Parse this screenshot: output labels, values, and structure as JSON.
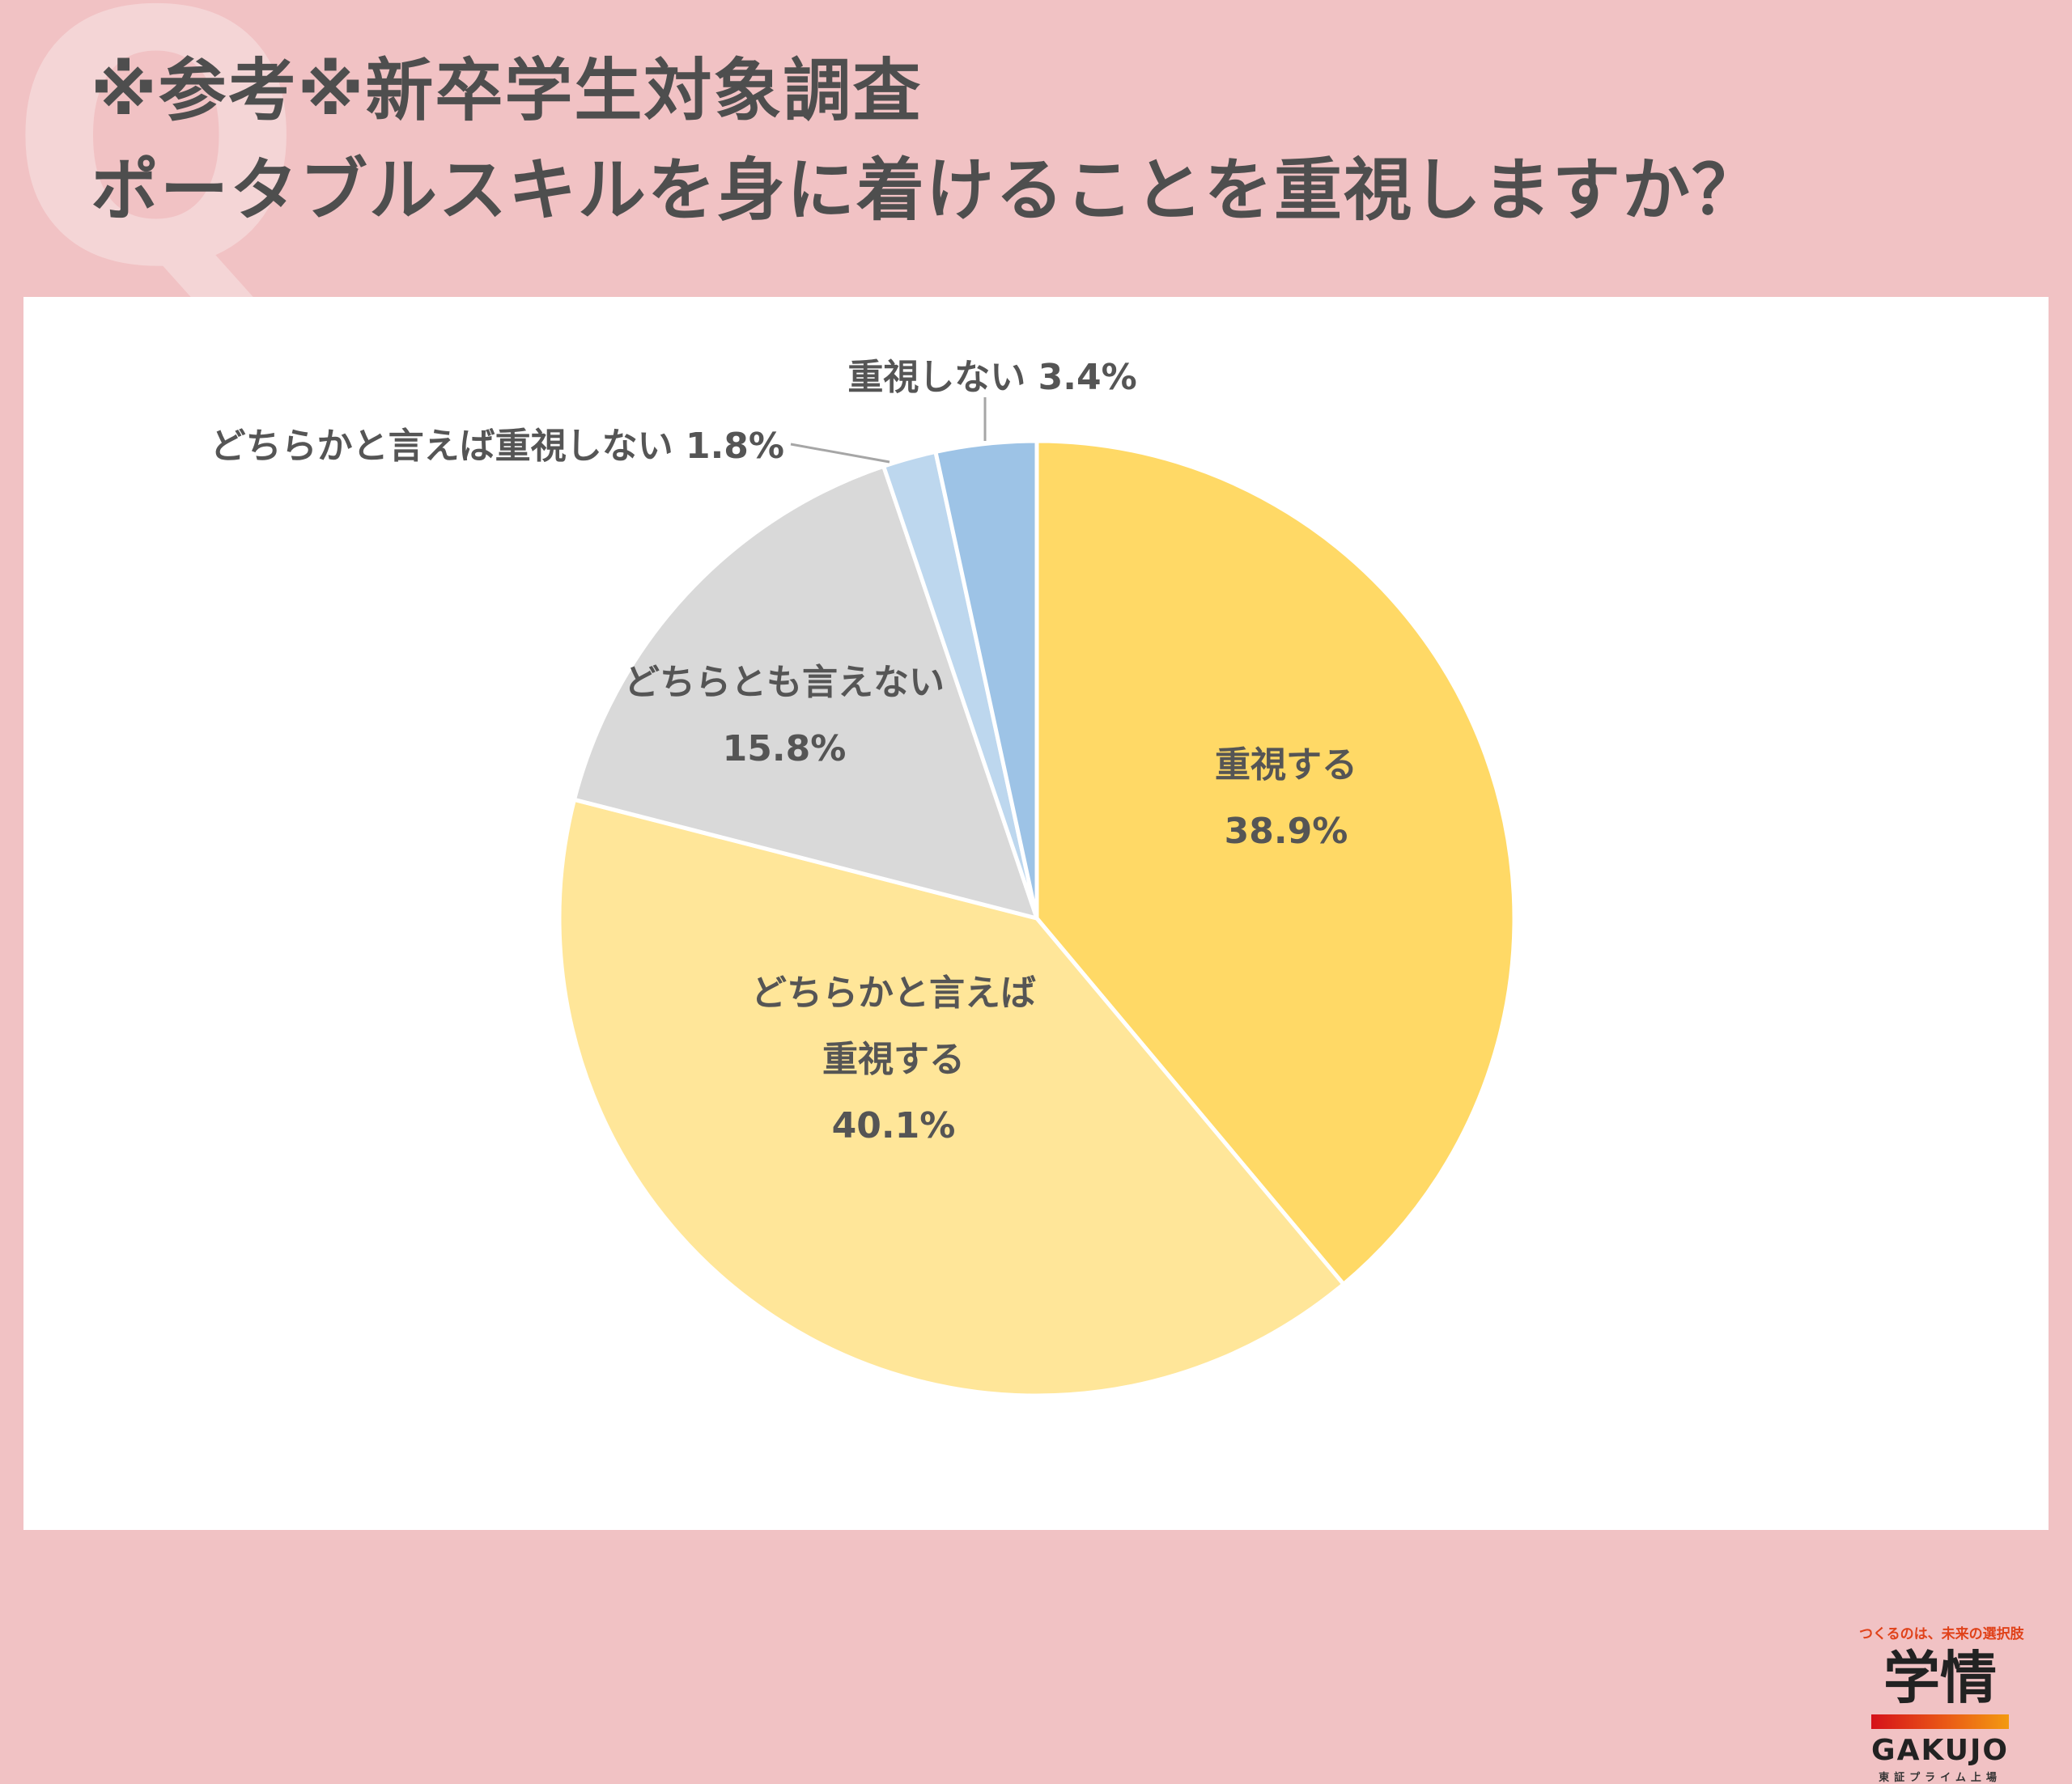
{
  "header": {
    "watermark": "Q",
    "title_line1": "※参考※新卒学生対象調査",
    "title_line2": "ポータブルスキルを身に着けることを重視しますか？"
  },
  "chart_data": {
    "type": "pie",
    "start": "12 o'clock, clockwise",
    "slices": [
      {
        "label_lines": [
          "重視する"
        ],
        "value": 38.9,
        "value_label": "38.9%",
        "color": "#ffd966",
        "label_position": "inside"
      },
      {
        "label_lines": [
          "どちらかと言えば",
          "重視する"
        ],
        "value": 40.1,
        "value_label": "40.1%",
        "color": "#ffe699",
        "label_position": "inside"
      },
      {
        "label_lines": [
          "どちらとも言えない"
        ],
        "value": 15.8,
        "value_label": "15.8%",
        "color": "#d9d9d9",
        "label_position": "inside"
      },
      {
        "label_lines": [
          "どちらかと言えば重視しない"
        ],
        "value": 1.8,
        "value_label": "1.8%",
        "color": "#bdd7ee",
        "label_position": "outside-leader"
      },
      {
        "label_lines": [
          "重視しない"
        ],
        "value": 3.4,
        "value_label": "3.4%",
        "color": "#9dc3e6",
        "label_position": "outside-leader"
      }
    ]
  },
  "logo": {
    "tagline": "つくるのは、未来の選択肢",
    "kanji": "学情",
    "english": "GAKUJO",
    "subtitle": "東証プライム上場"
  }
}
